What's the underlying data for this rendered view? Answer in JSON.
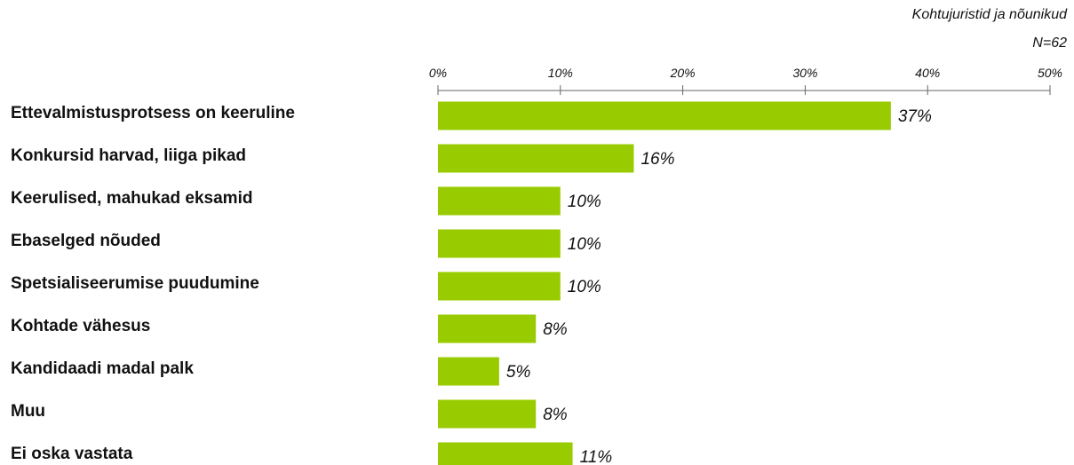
{
  "chart_data": {
    "type": "bar",
    "orientation": "horizontal",
    "subtitle_lines": [
      "Kohtujuristid ja nõunikud",
      "N=62"
    ],
    "categories": [
      "Ettevalmistusprotsess on keeruline",
      "Konkursid harvad, liiga pikad",
      "Keerulised, mahukad eksamid",
      "Ebaselged nõuded",
      "Spetsialiseerumise puudumine",
      "Kohtade vähesus",
      "Kandidaadi madal palk",
      "Muu",
      "Ei oska vastata"
    ],
    "values": [
      37,
      16,
      10,
      10,
      10,
      8,
      5,
      8,
      11
    ],
    "value_labels": [
      "37%",
      "16%",
      "10%",
      "10%",
      "10%",
      "8%",
      "5%",
      "8%",
      "11%"
    ],
    "xlim": [
      0,
      50
    ],
    "ticks": [
      0,
      10,
      20,
      30,
      40,
      50
    ],
    "tick_labels": [
      "0%",
      "10%",
      "20%",
      "30%",
      "40%",
      "50%"
    ],
    "bar_color": "#99cc00",
    "grid": false,
    "legend": "none"
  }
}
